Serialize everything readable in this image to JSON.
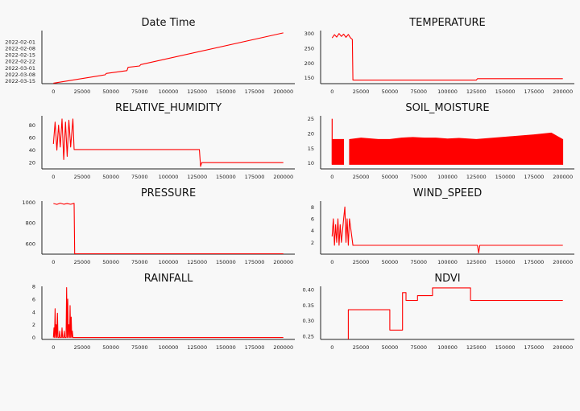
{
  "figure": {
    "background": "#f8f8f8",
    "line_color": "#ff0000"
  },
  "chart_data": [
    {
      "type": "line",
      "title": "Date Time",
      "xlabel": "",
      "ylabel": "",
      "xlim": [
        -10000,
        210000
      ],
      "xticks": [
        0,
        25000,
        50000,
        75000,
        100000,
        125000,
        150000,
        175000,
        200000
      ],
      "ylim": [
        19021,
        19078
      ],
      "yticks": [
        19024,
        19031,
        19038,
        19045,
        19052,
        19059,
        19066,
        19073
      ],
      "ytick_labels": [
        "2022-02-01",
        "2022-02-08",
        "2022-02-15",
        "2022-02-22",
        "2022-03-01",
        "2022-03-08",
        "2022-03-15"
      ],
      "series": [
        {
          "x": [
            0,
            45000,
            46000,
            64000,
            65000,
            75000,
            76000,
            200000
          ],
          "y": [
            19021.5,
            19030.5,
            19032,
            19035,
            19038.5,
            19040,
            19041.5,
            19075.5
          ]
        }
      ],
      "ytick_label_values": [
        19024,
        19031,
        19038,
        19045,
        19052,
        19059,
        19066
      ]
    },
    {
      "type": "line",
      "title": "TEMPERATURE",
      "xlabel": "",
      "ylabel": "",
      "xlim": [
        -10000,
        210000
      ],
      "xticks": [
        0,
        25000,
        50000,
        75000,
        100000,
        125000,
        150000,
        175000,
        200000
      ],
      "ylim": [
        130,
        310
      ],
      "yticks": [
        150,
        200,
        250,
        300
      ],
      "series": [
        {
          "x": [
            0,
            2000,
            4000,
            6000,
            8000,
            10000,
            12000,
            14000,
            16000,
            17500,
            18000,
            125000,
            126000,
            200000
          ],
          "y": [
            285,
            296,
            288,
            300,
            290,
            298,
            287,
            297,
            285,
            280,
            142,
            142,
            147,
            147
          ]
        }
      ]
    },
    {
      "type": "line",
      "title": "RELATIVE_HUMIDITY",
      "xlabel": "",
      "ylabel": "",
      "xlim": [
        -10000,
        210000
      ],
      "xticks": [
        0,
        25000,
        50000,
        75000,
        100000,
        125000,
        150000,
        175000,
        200000
      ],
      "ylim": [
        10,
        95
      ],
      "yticks": [
        20,
        40,
        60,
        80
      ],
      "series": [
        {
          "x": [
            0,
            1500,
            3000,
            4500,
            6000,
            7500,
            9000,
            10500,
            12000,
            13500,
            15000,
            17000,
            18000,
            127000,
            128000,
            129000,
            200000
          ],
          "y": [
            50,
            85,
            40,
            80,
            45,
            90,
            25,
            85,
            30,
            88,
            45,
            90,
            41,
            41,
            14,
            20,
            20
          ]
        }
      ]
    },
    {
      "type": "area",
      "title": "SOIL_MOISTURE",
      "xlabel": "",
      "ylabel": "",
      "xlim": [
        -10000,
        210000
      ],
      "xticks": [
        0,
        25000,
        50000,
        75000,
        100000,
        125000,
        150000,
        175000,
        200000
      ],
      "ylim": [
        8,
        26
      ],
      "yticks": [
        10,
        15,
        20,
        25
      ],
      "band_low": 9.5,
      "gap_x": [
        10000,
        15000
      ],
      "band_upper": {
        "x": [
          0,
          10000,
          15000,
          25000,
          40000,
          50000,
          60000,
          70000,
          80000,
          90000,
          100000,
          110000,
          125000,
          150000,
          175000,
          190000,
          200000
        ],
        "y": [
          18,
          18,
          18,
          18.5,
          18,
          18,
          18.5,
          18.7,
          18.5,
          18.5,
          18.2,
          18.4,
          18,
          18.8,
          19.6,
          20.2,
          18
        ]
      },
      "spike": {
        "x": 0,
        "y": 25
      }
    },
    {
      "type": "line",
      "title": "PRESSURE",
      "xlabel": "",
      "ylabel": "",
      "xlim": [
        -10000,
        210000
      ],
      "xticks": [
        0,
        25000,
        50000,
        75000,
        100000,
        125000,
        150000,
        175000,
        200000
      ],
      "ylim": [
        500,
        1010
      ],
      "yticks": [
        600,
        800,
        1000
      ],
      "ytick_labels": [
        "600",
        "800",
        "1000"
      ],
      "series": [
        {
          "x": [
            0,
            3000,
            6000,
            9000,
            12000,
            15000,
            18000,
            18500,
            200000
          ],
          "y": [
            987,
            978,
            990,
            980,
            986,
            979,
            988,
            503,
            503
          ]
        }
      ]
    },
    {
      "type": "line",
      "title": "WIND_SPEED",
      "xlabel": "",
      "ylabel": "",
      "xlim": [
        -10000,
        210000
      ],
      "xticks": [
        0,
        25000,
        50000,
        75000,
        100000,
        125000,
        150000,
        175000,
        200000
      ],
      "ylim": [
        0,
        9
      ],
      "yticks": [
        2,
        4,
        6,
        8
      ],
      "series": [
        {
          "x": [
            0,
            1000,
            2000,
            3000,
            4000,
            5000,
            6000,
            7000,
            8000,
            9000,
            10000,
            11000,
            12000,
            13000,
            14000,
            15000,
            17000,
            18000,
            126000,
            127000,
            128000,
            200000
          ],
          "y": [
            3,
            6,
            1.5,
            5,
            2,
            6,
            1.5,
            5,
            2,
            4,
            6,
            8,
            2,
            6,
            1.5,
            6,
            3,
            1.5,
            1.5,
            0.2,
            1.5,
            1.5
          ]
        }
      ]
    },
    {
      "type": "line",
      "title": "RAINFALL",
      "xlabel": "",
      "ylabel": "",
      "xlim": [
        -10000,
        210000
      ],
      "xticks": [
        0,
        25000,
        50000,
        75000,
        100000,
        125000,
        150000,
        175000,
        200000
      ],
      "ylim": [
        -0.3,
        8
      ],
      "yticks": [
        0,
        2,
        4,
        6,
        8
      ],
      "series": [
        {
          "x": [
            0,
            500,
            1000,
            1500,
            2000,
            2500,
            3000,
            3500,
            4000,
            5000,
            5500,
            6000,
            7000,
            7500,
            8000,
            9000,
            9500,
            10000,
            11000,
            11500,
            12000,
            12500,
            13000,
            13500,
            14000,
            14500,
            15000,
            15500,
            16000,
            16500,
            17000,
            200000
          ],
          "y": [
            0,
            1.5,
            0,
            4.5,
            0,
            2,
            0,
            3.8,
            0,
            0,
            1,
            0,
            0,
            1.5,
            0,
            0,
            1,
            0,
            0,
            7.8,
            0,
            6,
            0,
            2,
            0,
            5,
            0,
            3.2,
            0,
            1,
            0,
            0
          ]
        }
      ]
    },
    {
      "type": "line",
      "title": "NDVI",
      "xlabel": "",
      "ylabel": "",
      "xlim": [
        -10000,
        210000
      ],
      "xticks": [
        0,
        25000,
        50000,
        75000,
        100000,
        125000,
        150000,
        175000,
        200000
      ],
      "ylim": [
        0.24,
        0.41
      ],
      "yticks": [
        0.25,
        0.3,
        0.35,
        0.4
      ],
      "ytick_labels": [
        "0.25",
        "0.30",
        "0.35",
        "0.40"
      ],
      "series": [
        {
          "x": [
            0,
            14000,
            14000,
            50000,
            50000,
            61000,
            61000,
            64000,
            64000,
            74000,
            74000,
            87000,
            87000,
            120000,
            120000,
            200000
          ],
          "y": [
            0.235,
            0.235,
            0.335,
            0.335,
            0.27,
            0.27,
            0.39,
            0.39,
            0.365,
            0.365,
            0.38,
            0.38,
            0.405,
            0.405,
            0.365,
            0.365
          ]
        }
      ]
    }
  ]
}
